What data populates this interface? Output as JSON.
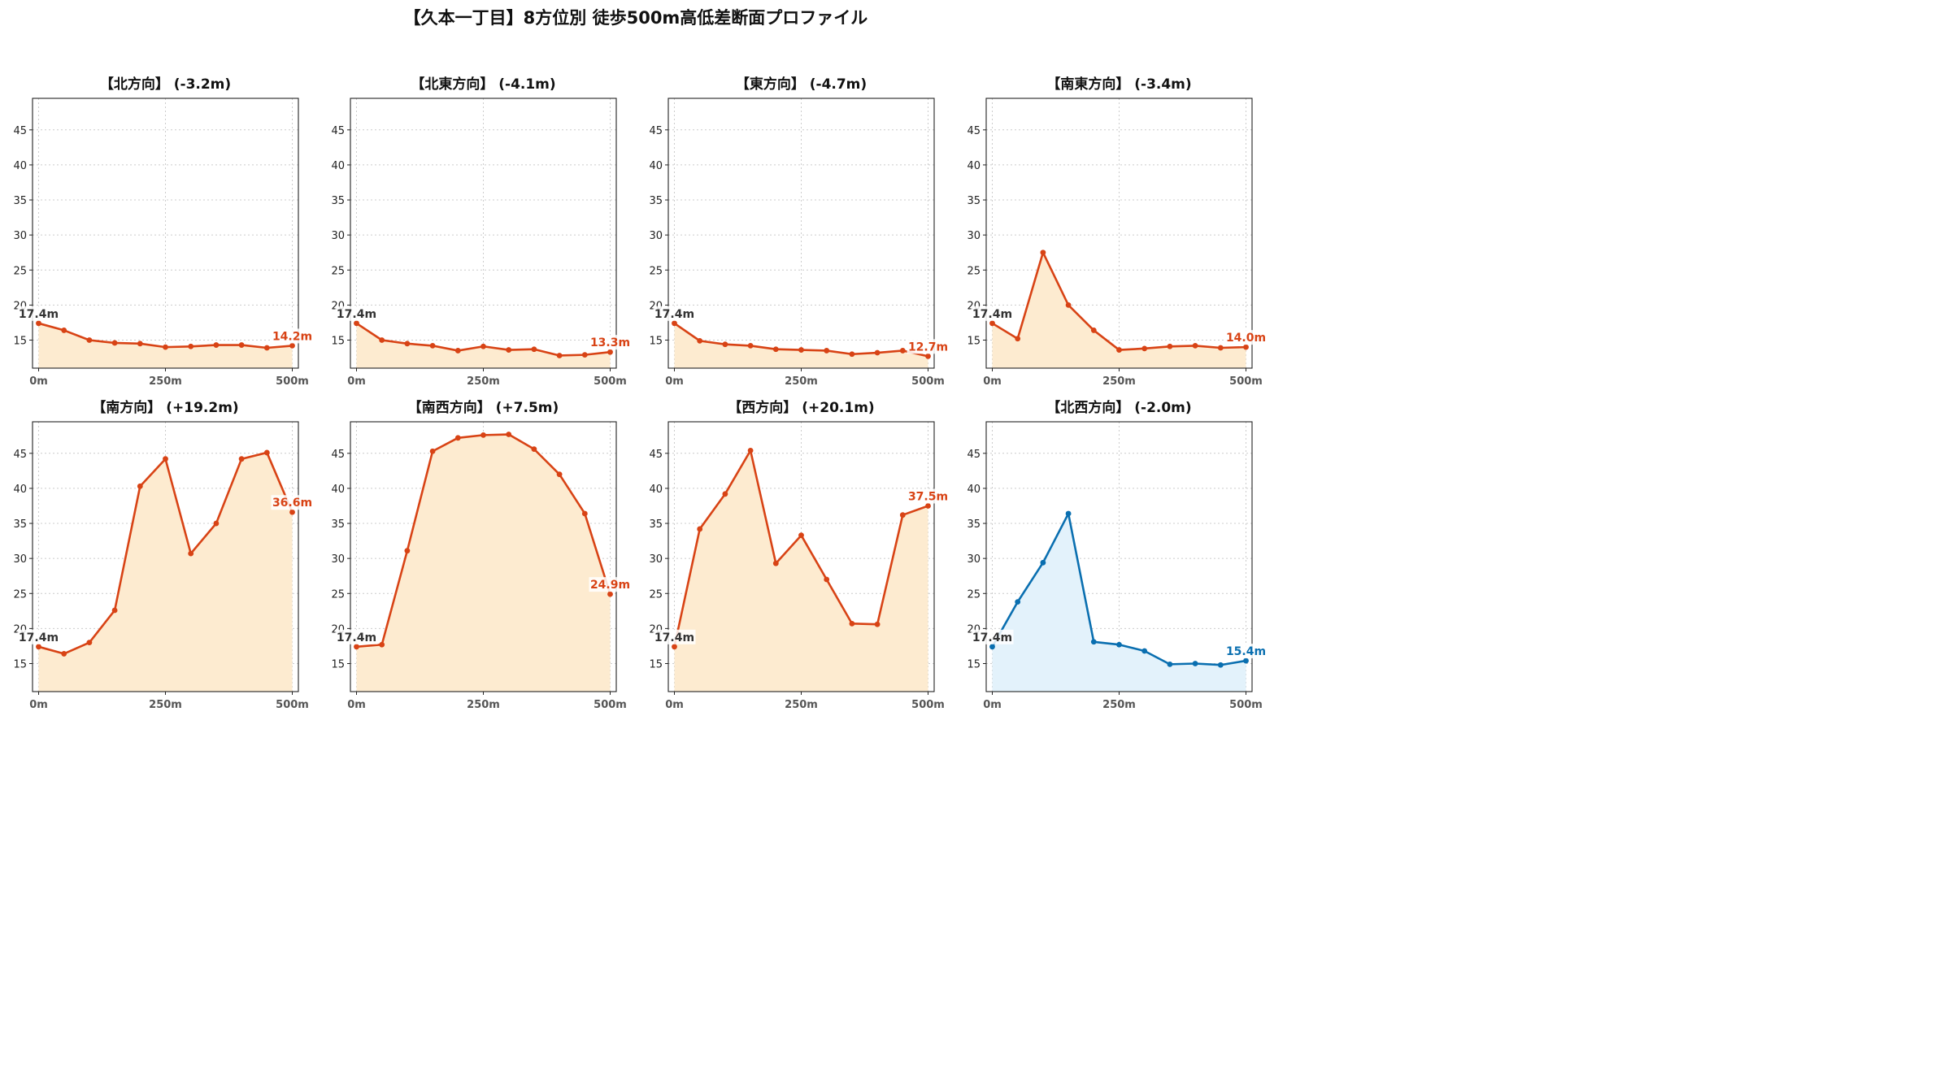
{
  "figure": {
    "suptitle": "【久本一丁目】8方位別 徒歩500m高低差断面プロファイル"
  },
  "colors": {
    "down": "#d84315",
    "down_fill": "#fdebd0",
    "up": "#0a6fb0",
    "up_fill": "#e3f2fb",
    "start_label": "#333333",
    "grid": "#cccccc"
  },
  "chart_data": [
    {
      "type": "area",
      "title": "【北方向】 (-3.2m)",
      "x": [
        0,
        50,
        100,
        150,
        200,
        250,
        300,
        350,
        400,
        450,
        500
      ],
      "y": [
        17.4,
        16.4,
        15.0,
        14.6,
        14.5,
        14.0,
        14.1,
        14.3,
        14.3,
        13.9,
        14.2
      ],
      "start_label": "17.4m",
      "end_label": "14.2m",
      "color_key": "down",
      "xticks": [
        "0m",
        "250m",
        "500m"
      ],
      "yticks": [
        15,
        20,
        25,
        30,
        35,
        40,
        45
      ],
      "ylim": [
        11,
        49.5
      ],
      "xlim": [
        -12,
        512
      ],
      "grid": true
    },
    {
      "type": "area",
      "title": "【北東方向】 (-4.1m)",
      "x": [
        0,
        50,
        100,
        150,
        200,
        250,
        300,
        350,
        400,
        450,
        500
      ],
      "y": [
        17.4,
        15.0,
        14.5,
        14.2,
        13.5,
        14.1,
        13.6,
        13.7,
        12.8,
        12.9,
        13.3
      ],
      "start_label": "17.4m",
      "end_label": "13.3m",
      "color_key": "down",
      "xticks": [
        "0m",
        "250m",
        "500m"
      ],
      "yticks": [
        15,
        20,
        25,
        30,
        35,
        40,
        45
      ],
      "ylim": [
        11,
        49.5
      ],
      "xlim": [
        -12,
        512
      ],
      "grid": true
    },
    {
      "type": "area",
      "title": "【東方向】 (-4.7m)",
      "x": [
        0,
        50,
        100,
        150,
        200,
        250,
        300,
        350,
        400,
        450,
        500
      ],
      "y": [
        17.4,
        14.9,
        14.4,
        14.2,
        13.7,
        13.6,
        13.5,
        13.0,
        13.2,
        13.5,
        12.7
      ],
      "start_label": "17.4m",
      "end_label": "12.7m",
      "color_key": "down",
      "xticks": [
        "0m",
        "250m",
        "500m"
      ],
      "yticks": [
        15,
        20,
        25,
        30,
        35,
        40,
        45
      ],
      "ylim": [
        11,
        49.5
      ],
      "xlim": [
        -12,
        512
      ],
      "grid": true
    },
    {
      "type": "area",
      "title": "【南東方向】 (-3.4m)",
      "x": [
        0,
        50,
        100,
        150,
        200,
        250,
        300,
        350,
        400,
        450,
        500
      ],
      "y": [
        17.4,
        15.2,
        27.5,
        20.0,
        16.4,
        13.6,
        13.8,
        14.1,
        14.2,
        13.9,
        14.0
      ],
      "start_label": "17.4m",
      "end_label": "14.0m",
      "color_key": "down",
      "xticks": [
        "0m",
        "250m",
        "500m"
      ],
      "yticks": [
        15,
        20,
        25,
        30,
        35,
        40,
        45
      ],
      "ylim": [
        11,
        49.5
      ],
      "xlim": [
        -12,
        512
      ],
      "grid": true
    },
    {
      "type": "area",
      "title": "【南方向】 (+19.2m)",
      "x": [
        0,
        50,
        100,
        150,
        200,
        250,
        300,
        350,
        400,
        450,
        500
      ],
      "y": [
        17.4,
        16.4,
        18.0,
        22.6,
        40.3,
        44.2,
        30.7,
        35.0,
        44.2,
        45.1,
        36.6
      ],
      "start_label": "17.4m",
      "end_label": "36.6m",
      "color_key": "down",
      "xticks": [
        "0m",
        "250m",
        "500m"
      ],
      "yticks": [
        15,
        20,
        25,
        30,
        35,
        40,
        45
      ],
      "ylim": [
        11,
        49.5
      ],
      "xlim": [
        -12,
        512
      ],
      "grid": true
    },
    {
      "type": "area",
      "title": "【南西方向】 (+7.5m)",
      "x": [
        0,
        50,
        100,
        150,
        200,
        250,
        300,
        350,
        400,
        450,
        500
      ],
      "y": [
        17.4,
        17.7,
        31.1,
        45.3,
        47.2,
        47.6,
        47.7,
        45.6,
        42.0,
        36.4,
        24.9
      ],
      "start_label": "17.4m",
      "end_label": "24.9m",
      "color_key": "down",
      "xticks": [
        "0m",
        "250m",
        "500m"
      ],
      "yticks": [
        15,
        20,
        25,
        30,
        35,
        40,
        45
      ],
      "ylim": [
        11,
        49.5
      ],
      "xlim": [
        -12,
        512
      ],
      "grid": true
    },
    {
      "type": "area",
      "title": "【西方向】 (+20.1m)",
      "x": [
        0,
        50,
        100,
        150,
        200,
        250,
        300,
        350,
        400,
        450,
        500
      ],
      "y": [
        17.4,
        34.2,
        39.2,
        45.4,
        29.3,
        33.3,
        27.0,
        20.7,
        20.6,
        36.2,
        37.5
      ],
      "start_label": "17.4m",
      "end_label": "37.5m",
      "color_key": "down",
      "xticks": [
        "0m",
        "250m",
        "500m"
      ],
      "yticks": [
        15,
        20,
        25,
        30,
        35,
        40,
        45
      ],
      "ylim": [
        11,
        49.5
      ],
      "xlim": [
        -12,
        512
      ],
      "grid": true
    },
    {
      "type": "area",
      "title": "【北西方向】 (-2.0m)",
      "x": [
        0,
        50,
        100,
        150,
        200,
        250,
        300,
        350,
        400,
        450,
        500
      ],
      "y": [
        17.4,
        23.8,
        29.4,
        36.4,
        18.1,
        17.7,
        16.8,
        14.9,
        15.0,
        14.8,
        15.4
      ],
      "start_label": "17.4m",
      "end_label": "15.4m",
      "color_key": "up",
      "xticks": [
        "0m",
        "250m",
        "500m"
      ],
      "yticks": [
        15,
        20,
        25,
        30,
        35,
        40,
        45
      ],
      "ylim": [
        11,
        49.5
      ],
      "xlim": [
        -12,
        512
      ],
      "grid": true
    }
  ]
}
